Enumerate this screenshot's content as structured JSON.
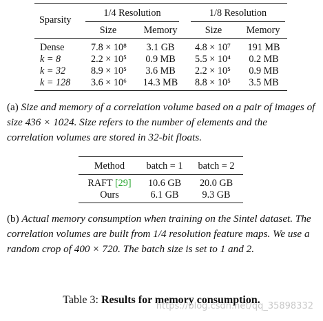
{
  "table_a": {
    "header": {
      "sparsity": "Sparsity",
      "group1": "1/4 Resolution",
      "group2": "1/8 Resolution",
      "size1": "Size",
      "memory1": "Memory",
      "size2": "Size",
      "memory2": "Memory"
    },
    "rows": [
      {
        "label": "Dense",
        "size1": "7.8 × 10⁸",
        "memory1": "3.1 GB",
        "size2": "4.8 × 10⁷",
        "memory2": "191 MB"
      },
      {
        "label": "k = 8",
        "size1": "2.2 × 10⁵",
        "memory1": "0.9 MB",
        "size2": "5.5 × 10⁴",
        "memory2": "0.2 MB"
      },
      {
        "label": "k = 32",
        "size1": "8.9 × 10⁵",
        "memory1": "3.6 MB",
        "size2": "2.2 × 10⁵",
        "memory2": "0.9 MB"
      },
      {
        "label": "k = 128",
        "size1": "3.6 × 10⁶",
        "memory1": "14.3 MB",
        "size2": "8.8 × 10⁵",
        "memory2": "3.5 MB"
      }
    ],
    "caption_prefix": "(a) ",
    "caption_text": "Size and memory of a correlation volume based on a pair of images of size 436 × 1024. Size refers to the number of elements and the correlation volumes are stored in 32-bit floats."
  },
  "table_b": {
    "header": {
      "method": "Method",
      "batch1": "batch = 1",
      "batch2": "batch = 2"
    },
    "rows": [
      {
        "method": "RAFT ",
        "cite": "[29]",
        "batch1": "10.6 GB",
        "batch2": "20.0 GB"
      },
      {
        "method": "Ours",
        "cite": "",
        "batch1": "6.1 GB",
        "batch2": "9.3 GB"
      }
    ],
    "caption_prefix": "(b) ",
    "caption_text": "Actual memory consumption when training on the Sintel dataset. The correlation volumes are built from 1/4 resolution feature maps. We use a random crop of 400 × 720. The batch size is set to 1 and 2."
  },
  "table_title": {
    "label": "Table 3: ",
    "text": "Results for memory consumption."
  },
  "watermark": "https://blog.csdn.net/qq_35898332"
}
